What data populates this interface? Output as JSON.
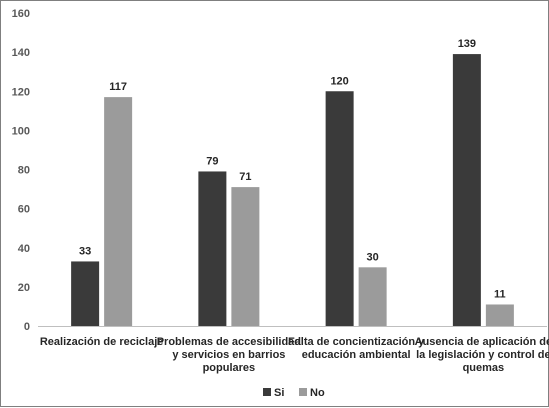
{
  "chart_data": {
    "type": "bar",
    "categories": [
      [
        "Realización de reciclaje"
      ],
      [
        "Problemas de accesibilidad",
        "y servicios en barrios",
        "populares"
      ],
      [
        "Falta de concientización y",
        "educación ambiental"
      ],
      [
        "Ausencia de aplicación de",
        "la legislación y control de",
        "quemas"
      ]
    ],
    "series": [
      {
        "name": "Si",
        "values": [
          33,
          79,
          120,
          139
        ],
        "color": "#3a3a3a"
      },
      {
        "name": "No",
        "values": [
          117,
          71,
          30,
          11
        ],
        "color": "#9b9b9b"
      }
    ],
    "ylim": [
      0,
      160
    ],
    "yticks": [
      0,
      20,
      40,
      60,
      80,
      100,
      120,
      140,
      160
    ],
    "grid": false,
    "legend_position": "bottom-center",
    "data_labels": true,
    "title": "",
    "xlabel": "",
    "ylabel": ""
  }
}
